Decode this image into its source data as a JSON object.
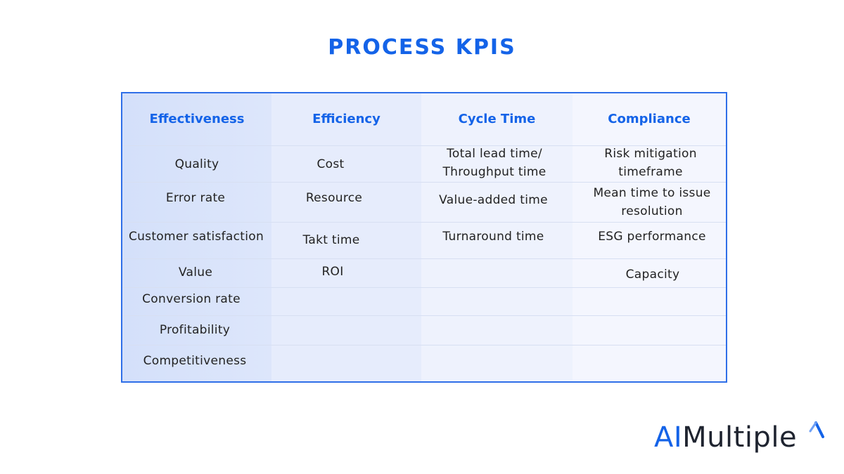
{
  "title": "PROCESS KPIS",
  "columns": [
    {
      "header": "Effectiveness",
      "items": [
        "Quality",
        "Error rate",
        "Customer satisfaction",
        "Value",
        "Conversion rate",
        "Profitability",
        "Competitiveness"
      ]
    },
    {
      "header": "Efficiency",
      "items": [
        "Cost",
        "Resource",
        "Takt time",
        "ROI"
      ]
    },
    {
      "header": "Cycle Time",
      "items": [
        "Total lead time/ Throughput time",
        "Value-added time",
        "Turnaround time"
      ]
    },
    {
      "header": "Compliance",
      "items": [
        "Risk mitigation timeframe",
        "Mean time to issue resolution",
        "ESG performance",
        "Capacity"
      ]
    }
  ],
  "logo": {
    "ai": "AI",
    "rest": "Multiple"
  },
  "colors": {
    "accent": "#1463e8",
    "border": "#2f6fe8"
  }
}
